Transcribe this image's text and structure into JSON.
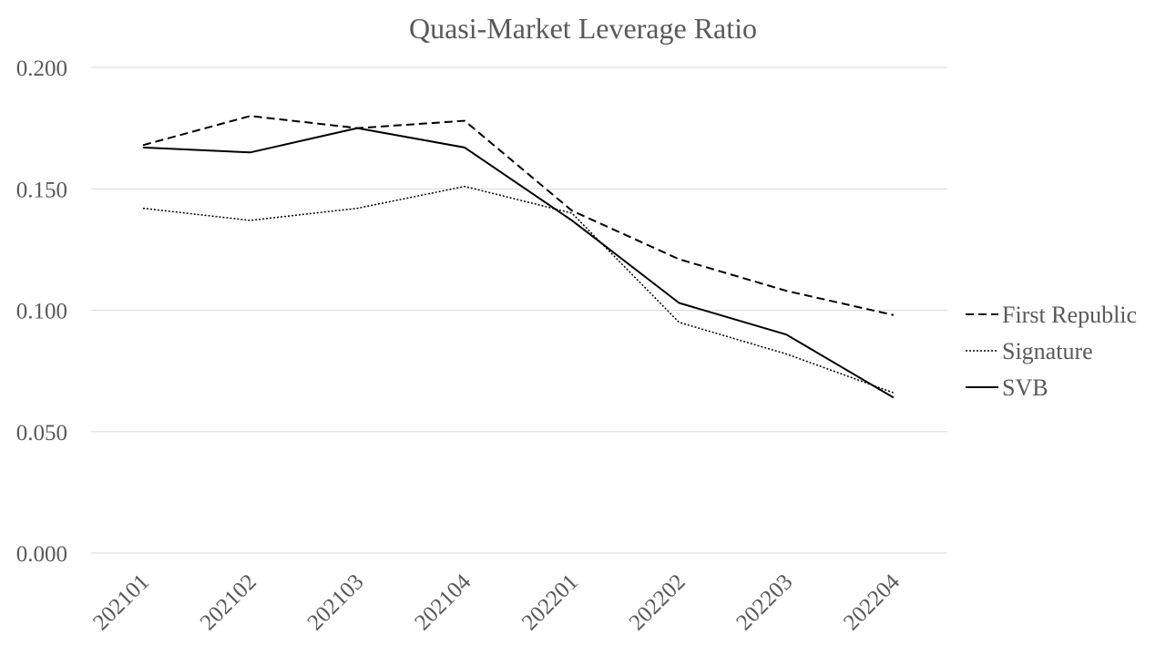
{
  "chart_data": {
    "type": "line",
    "title": "Quasi-Market Leverage Ratio",
    "xlabel": "",
    "ylabel": "",
    "categories": [
      "202101",
      "202102",
      "202103",
      "202104",
      "202201",
      "202202",
      "202203",
      "202204"
    ],
    "y_ticks": [
      "0.000",
      "0.050",
      "0.100",
      "0.150",
      "0.200"
    ],
    "ylim": [
      0,
      0.2
    ],
    "grid": "horizontal",
    "legend_position": "right",
    "series": [
      {
        "name": "First Republic",
        "values": [
          0.168,
          0.18,
          0.175,
          0.178,
          0.141,
          0.121,
          0.108,
          0.098
        ],
        "color": "#000000",
        "line_style": "dashed"
      },
      {
        "name": "Signature",
        "values": [
          0.142,
          0.137,
          0.142,
          0.151,
          0.14,
          0.095,
          0.082,
          0.066
        ],
        "color": "#000000",
        "line_style": "dotted"
      },
      {
        "name": "SVB",
        "values": [
          0.167,
          0.165,
          0.175,
          0.167,
          0.137,
          0.103,
          0.09,
          0.064
        ],
        "color": "#000000",
        "line_style": "solid"
      }
    ]
  }
}
